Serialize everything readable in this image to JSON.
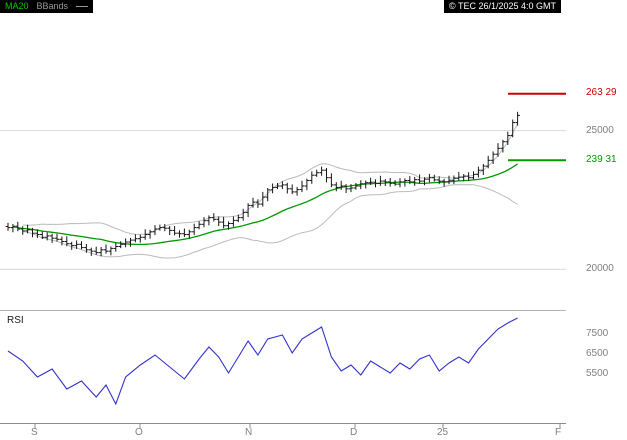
{
  "legend": {
    "ma_label": "MA20",
    "bbands_label": "BBands"
  },
  "header": {
    "copyright": "© TEC 26/1/2025 4:0 GMT"
  },
  "price_panel": {
    "ticks": [
      {
        "value": 25000,
        "label": "25000"
      },
      {
        "value": 20000,
        "label": "20000"
      }
    ],
    "resistance": {
      "value": 26329,
      "label": "263 29",
      "color": "#cc0000"
    },
    "support": {
      "value": 23931,
      "label": "239 31",
      "color": "#009b00"
    }
  },
  "rsi_panel": {
    "label": "RSI",
    "color": "#3333cc",
    "ticks": [
      {
        "value": 7500,
        "label": "7500"
      },
      {
        "value": 6500,
        "label": "6500"
      },
      {
        "value": 5500,
        "label": "5500"
      }
    ]
  },
  "x_axis": {
    "labels": [
      "S",
      "O",
      "N",
      "D",
      "25",
      "F"
    ]
  },
  "chart_data": [
    {
      "type": "ohlc",
      "title": "Daily price with MA20 and Bollinger Bands",
      "x_axis_labels": [
        "S",
        "O",
        "N",
        "D",
        "25",
        "F"
      ],
      "ylim": [
        18600,
        29640
      ],
      "y_ticks": [
        25000,
        20000
      ],
      "close": [
        21500,
        21550,
        21450,
        21380,
        21420,
        21300,
        21250,
        21150,
        21200,
        21120,
        21080,
        21000,
        20920,
        20850,
        20900,
        20780,
        20700,
        20650,
        20600,
        20700,
        20650,
        20750,
        20820,
        20900,
        20980,
        21050,
        21100,
        21150,
        21250,
        21350,
        21450,
        21500,
        21480,
        21400,
        21300,
        21280,
        21250,
        21350,
        21500,
        21620,
        21750,
        21860,
        21800,
        21700,
        21570,
        21650,
        21760,
        21860,
        22050,
        22300,
        22420,
        22350,
        22600,
        22860,
        22950,
        23000,
        23040,
        22900,
        22790,
        22870,
        23000,
        23200,
        23390,
        23480,
        23570,
        23300,
        23040,
        22950,
        23000,
        22900,
        22930,
        23000,
        23080,
        23120,
        23140,
        23100,
        23180,
        23150,
        23100,
        23070,
        23150,
        23200,
        23150,
        23230,
        23180,
        23250,
        23300,
        23220,
        23180,
        23150,
        23210,
        23280,
        23320,
        23360,
        23300,
        23420,
        23570,
        23720,
        23930,
        24150,
        24360,
        24600,
        24820,
        25290,
        25550
      ],
      "wick_up_pattern": [
        130,
        80,
        160,
        100,
        190,
        70,
        140,
        110
      ],
      "wick_down_pattern": [
        110,
        170,
        80,
        140,
        90,
        150,
        120,
        60
      ],
      "overlays": [
        {
          "name": "MA20",
          "window": 20,
          "color": "#009b00"
        },
        {
          "name": "BBands",
          "window": 20,
          "mult": 2,
          "color": "#bbbbbb"
        }
      ],
      "levels": [
        {
          "value": 26329,
          "label": "263 29",
          "color": "#cc0000"
        },
        {
          "value": 23931,
          "label": "239 31",
          "color": "#009b00"
        }
      ],
      "grid": "horizontal",
      "legend_position": "top-left"
    },
    {
      "type": "line",
      "title": "RSI",
      "ylim": [
        3000,
        8600
      ],
      "y_ticks": [
        7500,
        6500,
        5500
      ],
      "color": "#3333cc",
      "points": [
        [
          0,
          6600
        ],
        [
          3,
          6100
        ],
        [
          6,
          5300
        ],
        [
          9,
          5700
        ],
        [
          12,
          4700
        ],
        [
          15,
          5100
        ],
        [
          18,
          4300
        ],
        [
          20,
          4900
        ],
        [
          22,
          3950
        ],
        [
          24,
          5300
        ],
        [
          27,
          5900
        ],
        [
          30,
          6400
        ],
        [
          33,
          5800
        ],
        [
          36,
          5200
        ],
        [
          39,
          6200
        ],
        [
          41,
          6800
        ],
        [
          43,
          6300
        ],
        [
          45,
          5500
        ],
        [
          47,
          6300
        ],
        [
          49,
          7100
        ],
        [
          51,
          6400
        ],
        [
          53,
          7200
        ],
        [
          56,
          7400
        ],
        [
          58,
          6500
        ],
        [
          60,
          7200
        ],
        [
          62,
          7500
        ],
        [
          64,
          7800
        ],
        [
          66,
          6300
        ],
        [
          68,
          5600
        ],
        [
          70,
          5900
        ],
        [
          72,
          5400
        ],
        [
          74,
          6100
        ],
        [
          76,
          5800
        ],
        [
          78,
          5500
        ],
        [
          80,
          6000
        ],
        [
          82,
          5700
        ],
        [
          84,
          6200
        ],
        [
          86,
          6400
        ],
        [
          88,
          5600
        ],
        [
          90,
          6000
        ],
        [
          92,
          6300
        ],
        [
          94,
          6000
        ],
        [
          96,
          6700
        ],
        [
          98,
          7200
        ],
        [
          100,
          7700
        ],
        [
          102,
          8000
        ],
        [
          104,
          8250
        ]
      ]
    }
  ]
}
